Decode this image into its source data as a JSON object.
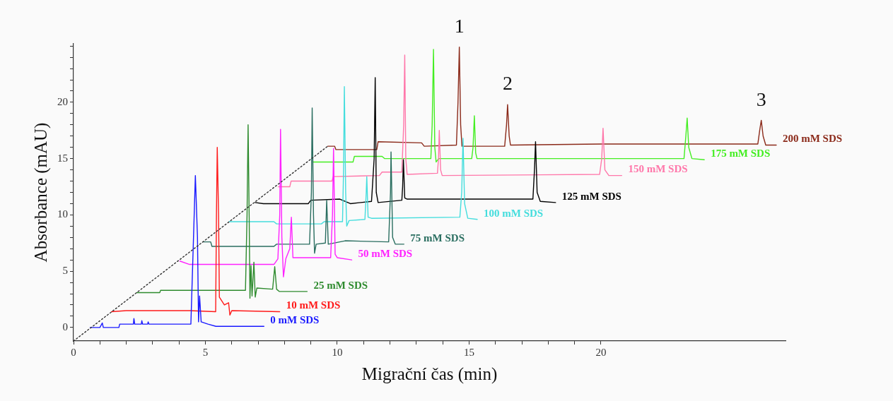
{
  "chart_data": {
    "type": "line",
    "xlabel": "Migrační čas (min)",
    "ylabel": "Absorbance (mAU)",
    "xlim": [
      0,
      27
    ],
    "ylim": [
      -1.2,
      25.2
    ],
    "xticks": [
      0,
      {
        "value": 1,
        "label": null
      },
      {
        "value": 2,
        "label": null
      },
      {
        "value": 3,
        "label": null
      },
      {
        "value": 4,
        "label": null
      },
      5,
      {
        "value": 6,
        "label": null
      },
      {
        "value": 7,
        "label": null
      },
      {
        "value": 8,
        "label": null
      },
      {
        "value": 9,
        "label": null
      },
      10,
      {
        "value": 11,
        "label": null
      },
      {
        "value": 12,
        "label": null
      },
      {
        "value": 13,
        "label": null
      },
      {
        "value": 14,
        "label": null
      },
      15,
      {
        "value": 16,
        "label": null
      },
      {
        "value": 17,
        "label": null
      },
      {
        "value": 18,
        "label": null
      },
      {
        "value": 19,
        "label": null
      },
      20
    ],
    "yticks": [
      0,
      {
        "value": 1,
        "label": null
      },
      {
        "value": 2,
        "label": null
      },
      {
        "value": 3,
        "label": null
      },
      {
        "value": 4,
        "label": null
      },
      5,
      {
        "value": 6,
        "label": null
      },
      {
        "value": 7,
        "label": null
      },
      {
        "value": 8,
        "label": null
      },
      {
        "value": 9,
        "label": null
      },
      10,
      {
        "value": 11,
        "label": null
      },
      {
        "value": 12,
        "label": null
      },
      {
        "value": 13,
        "label": null
      },
      {
        "value": 14,
        "label": null
      },
      15,
      {
        "value": 16,
        "label": null
      },
      {
        "value": 17,
        "label": null
      },
      {
        "value": 18,
        "label": null
      },
      {
        "value": 19,
        "label": null
      },
      20,
      {
        "value": 21,
        "label": null
      },
      {
        "value": 22,
        "label": null
      },
      {
        "value": 23,
        "label": null
      },
      {
        "value": 24,
        "label": null
      },
      {
        "value": 25,
        "label": null
      }
    ],
    "grid": false,
    "legend": false,
    "marker": "none",
    "line_style": "solid",
    "series": [
      {
        "type": "line",
        "line_style": "dotted",
        "color": "#333333",
        "x": [
          0,
          9.64
        ],
        "values": [
          -1.2,
          16.1
        ]
      },
      {
        "name": "0 mM SDS",
        "color": "#1a1aff",
        "x": [
          0.63,
          1.0,
          1.09,
          1.13,
          1.72,
          1.75,
          2.27,
          2.29,
          2.32,
          2.57,
          2.59,
          2.62,
          2.81,
          2.83,
          2.86,
          4.45,
          4.55,
          4.62,
          4.7,
          4.74,
          4.78,
          4.84,
          5.1,
          5.4,
          7.22
        ],
        "values": [
          0,
          0,
          0.4,
          0,
          0,
          0.3,
          0.3,
          0.8,
          0.3,
          0.3,
          0.6,
          0.3,
          0.3,
          0.5,
          0.3,
          0.3,
          8,
          13.5,
          8,
          0.5,
          2.8,
          0.5,
          0.3,
          0.1,
          0.1
        ]
      },
      {
        "name": "10 mM SDS",
        "color": "#ff1a1a",
        "x": [
          1.44,
          2.0,
          4.4,
          5.39,
          5.42,
          5.45,
          5.5,
          5.53,
          5.72,
          5.88,
          5.93,
          6.0,
          7.82
        ],
        "values": [
          1.4,
          1.5,
          1.5,
          1.4,
          10,
          16.0,
          10,
          2.7,
          2.0,
          2.2,
          1.1,
          1.5,
          1.4
        ]
      },
      {
        "name": "25 mM SDS",
        "color": "#2e8b2e",
        "x": [
          2.4,
          3.27,
          3.3,
          6.52,
          6.58,
          6.62,
          6.66,
          6.69,
          6.73,
          6.77,
          6.84,
          6.89,
          6.95,
          7.55,
          7.63,
          7.7,
          7.8,
          8.86
        ],
        "values": [
          3.1,
          3.1,
          3.3,
          3.3,
          10,
          18.0,
          10,
          2.6,
          5.5,
          2.8,
          5.8,
          2.7,
          3.5,
          3.4,
          5.4,
          3.4,
          3.2,
          3.2
        ]
      },
      {
        "name": "50 mM SDS",
        "color": "#ff22ff",
        "x": [
          4.03,
          4.4,
          7.6,
          7.75,
          7.82,
          7.85,
          7.9,
          7.96,
          8.05,
          8.2,
          8.26,
          8.32,
          9.75,
          9.82,
          9.86,
          9.92,
          10.0,
          10.55
        ],
        "values": [
          5.9,
          5.6,
          5.6,
          6.1,
          10,
          17.6,
          8,
          4.5,
          6.1,
          7,
          9.8,
          6.2,
          6.2,
          10,
          15.9,
          6.5,
          6.2,
          6.0
        ]
      },
      {
        "name": "75 mM SDS",
        "color": "#2a6e60",
        "x": [
          4.9,
          5.2,
          5.25,
          7.6,
          7.7,
          8.95,
          9.02,
          9.05,
          9.1,
          9.14,
          9.2,
          9.55,
          9.6,
          9.66,
          10.3,
          11.95,
          12.02,
          12.04,
          12.1,
          12.2,
          12.53
        ],
        "values": [
          7.6,
          7.6,
          7.2,
          7.2,
          7.4,
          7.4,
          12,
          19.5,
          10,
          6.6,
          7.4,
          7.5,
          11.3,
          7.4,
          7.7,
          7.6,
          12,
          15.6,
          8,
          7.4,
          7.4
        ]
      },
      {
        "name": "100 mM SDS",
        "color": "#44dddd",
        "x": [
          5.9,
          7.6,
          7.7,
          9.4,
          9.5,
          10.2,
          10.24,
          10.27,
          10.32,
          10.36,
          10.45,
          11.05,
          11.1,
          11.12,
          11.17,
          11.3,
          14.65,
          14.72,
          14.77,
          14.83,
          14.95,
          15.31
        ],
        "values": [
          9.4,
          9.4,
          9.2,
          9.2,
          9.4,
          9.4,
          14,
          21.4,
          12,
          9.0,
          9.5,
          9.6,
          12,
          13.4,
          9.8,
          9.7,
          9.8,
          12,
          16.8,
          11,
          9.7,
          9.6
        ]
      },
      {
        "name": "125 mM SDS",
        "color": "#000000",
        "x": [
          6.89,
          7.2,
          8.9,
          9.0,
          10.1,
          10.5,
          11.3,
          11.4,
          11.44,
          11.48,
          11.55,
          12.45,
          12.48,
          12.51,
          12.56,
          12.65,
          17.42,
          17.48,
          17.52,
          17.58,
          17.7,
          18.28
        ],
        "values": [
          11.1,
          11.0,
          11.0,
          11.3,
          11.4,
          11.0,
          11.2,
          15,
          22.2,
          12,
          11.1,
          11.3,
          12.5,
          14.9,
          11.5,
          11.4,
          11.4,
          14,
          16.5,
          12,
          11.2,
          11.1
        ]
      },
      {
        "name": "150 mM SDS",
        "color": "#ff77aa",
        "x": [
          7.77,
          8.2,
          8.25,
          9.8,
          9.85,
          11.6,
          11.7,
          12.45,
          12.52,
          12.56,
          12.6,
          12.65,
          13.8,
          13.84,
          13.87,
          13.92,
          13.98,
          19.95,
          20.03,
          20.08,
          20.15,
          20.3,
          20.79
        ],
        "values": [
          12.5,
          12.5,
          13.0,
          13.0,
          13.4,
          13.5,
          13.8,
          13.8,
          18,
          24.2,
          15,
          13.6,
          13.7,
          15,
          17.5,
          14,
          13.5,
          13.6,
          15,
          17.7,
          14,
          13.5,
          13.5
        ]
      },
      {
        "name": "175 mM SDS",
        "color": "#44ee22",
        "x": [
          9.07,
          10.6,
          10.65,
          11.7,
          11.8,
          13.55,
          13.6,
          13.65,
          13.7,
          13.75,
          13.85,
          15.1,
          15.15,
          15.2,
          15.25,
          15.3,
          23.15,
          23.22,
          23.27,
          23.33,
          23.45,
          23.92
        ],
        "values": [
          14.7,
          14.7,
          15.2,
          15.2,
          15.0,
          15.0,
          18,
          24.7,
          16,
          14.7,
          15.0,
          15.0,
          16,
          18.8,
          15.5,
          15.0,
          15.0,
          17,
          18.6,
          16,
          15.0,
          14.9
        ]
      },
      {
        "name": "200 mM SDS",
        "color": "#8b2a1a",
        "x": [
          9.64,
          9.9,
          9.95,
          11.5,
          11.55,
          13.2,
          13.3,
          14.52,
          14.58,
          14.63,
          14.68,
          14.73,
          16.35,
          16.42,
          16.46,
          16.52,
          16.57,
          20,
          25.95,
          26.02,
          26.08,
          26.15,
          26.25,
          26.65
        ],
        "values": [
          16.1,
          16.1,
          15.8,
          15.8,
          16.5,
          16.4,
          16.1,
          16.2,
          20,
          24.9,
          18,
          16.1,
          16.1,
          18,
          19.8,
          17,
          16.2,
          16.3,
          16.3,
          17.5,
          18.4,
          17,
          16.2,
          16.2
        ]
      }
    ],
    "annotations": [
      {
        "text": "1",
        "x": 14.63,
        "y": 24.9
      },
      {
        "text": "2",
        "x": 16.46,
        "y": 19.8
      },
      {
        "text": "3",
        "x": 26.08,
        "y": 18.4
      }
    ]
  }
}
